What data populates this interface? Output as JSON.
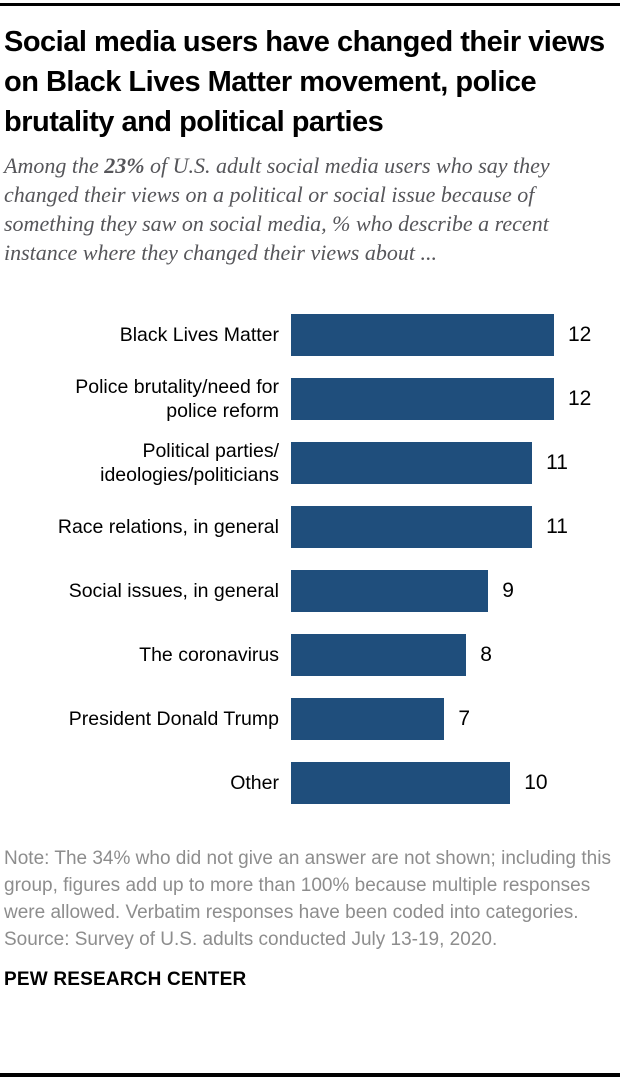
{
  "page": {
    "title": "Social media users have changed their views on Black Lives Matter movement, police brutality and political parties",
    "subtitle": {
      "part1": "Among the ",
      "highlight": "23%",
      "part2": " of U.S. adult social media users who say they changed their views on a political or social issue because of something they saw on social media, % who describe a recent instance where they changed their views about ..."
    },
    "note": "Note: The 34% who did not give an answer are not shown; including this group, figures add up to more than 100% because multiple responses were allowed. Verbatim responses have been coded into categories.",
    "source": "Source: Survey of U.S. adults conducted July 13-19, 2020.",
    "brand": "PEW RESEARCH CENTER"
  },
  "chart_data": {
    "type": "bar",
    "orientation": "horizontal",
    "title": "Social media users have changed their views on Black Lives Matter movement, police brutality and political parties",
    "subtitle": "Among the 23% of U.S. adult social media users who say they changed their views on a political or social issue because of something they saw on social media, % who describe a recent instance where they changed their views about ...",
    "categories": [
      "Black Lives Matter",
      "Police brutality/need for\npolice reform",
      "Political parties/\nideologies/politicians",
      "Race relations, in general",
      "Social issues, in general",
      "The coronavirus",
      "President Donald Trump",
      "Other"
    ],
    "values": [
      12,
      12,
      11,
      11,
      9,
      8,
      7,
      10
    ],
    "value_suffix": "%",
    "xlabel": "",
    "ylabel": "",
    "xlim": [
      0,
      12.5
    ],
    "grid": false,
    "legend": false,
    "value_labels": "outside-end",
    "bar_color": "#1F4E7C",
    "label_color": "#000000",
    "value_label_color": "#000000"
  }
}
